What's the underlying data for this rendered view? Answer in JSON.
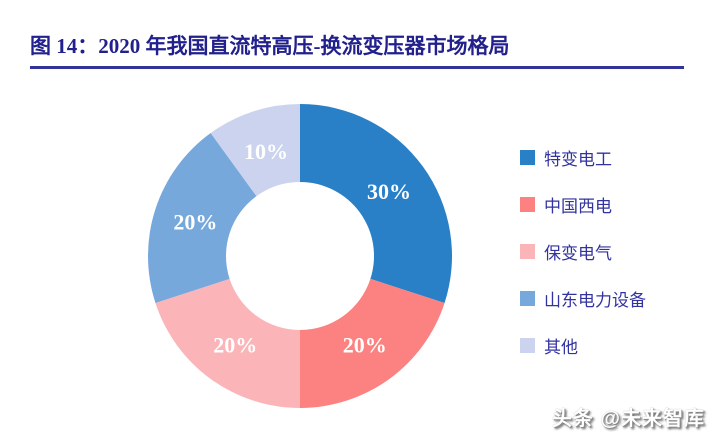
{
  "title": "图 14：2020 年我国直流特高压-换流变压器市场格局",
  "watermark": "头条 @未来智库",
  "accent_color": "#32329B",
  "chart_data": {
    "type": "pie",
    "subtype": "donut",
    "title": "2020 年我国直流特高压-换流变压器市场格局",
    "categories": [
      "特变电工",
      "中国西电",
      "保变电气",
      "山东电力设备",
      "其他"
    ],
    "values": [
      30,
      20,
      20,
      20,
      10
    ],
    "labels": [
      "30%",
      "20%",
      "20%",
      "20%",
      "10%"
    ],
    "colors": [
      "#2A80C7",
      "#FB8280",
      "#FBB5B8",
      "#77A8DC",
      "#CBD3EE"
    ],
    "label_color": "#ffffff",
    "legend_position": "right",
    "legend_text_color": "#3333A0",
    "start_angle_deg": 0,
    "direction": "clockwise",
    "inner_radius_ratio": 0.49
  }
}
